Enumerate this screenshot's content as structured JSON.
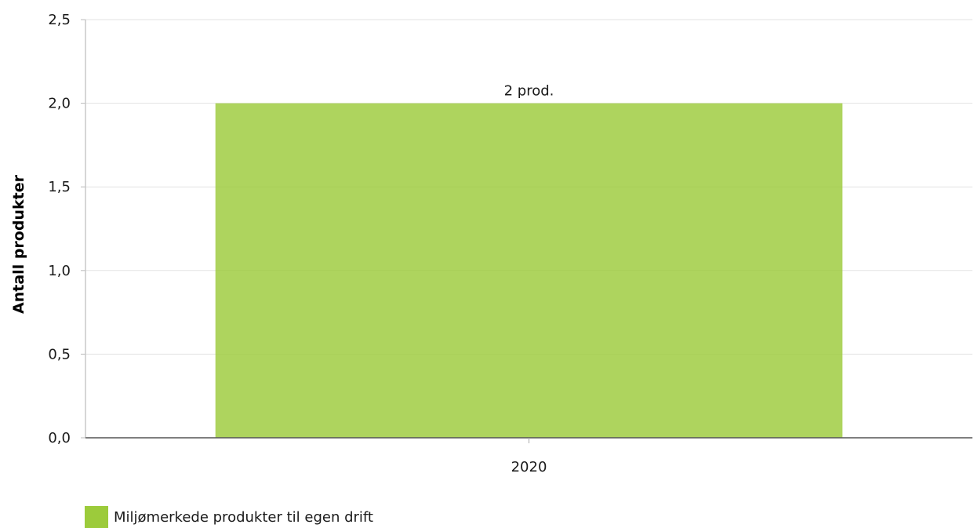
{
  "chart_data": {
    "type": "bar",
    "categories": [
      "2020"
    ],
    "series": [
      {
        "name": "Miljømerkede produkter til egen drift",
        "values": [
          2
        ],
        "data_labels": [
          "2 prod."
        ],
        "color": "#9ccb3b"
      }
    ],
    "title": "",
    "xlabel": "",
    "ylabel": "Antall produkter",
    "ylim": [
      0,
      2.5
    ],
    "yticks": [
      "0,0",
      "0,5",
      "1,0",
      "1,5",
      "2,0",
      "2,5"
    ],
    "grid": true,
    "legend_position": "bottom-left"
  }
}
